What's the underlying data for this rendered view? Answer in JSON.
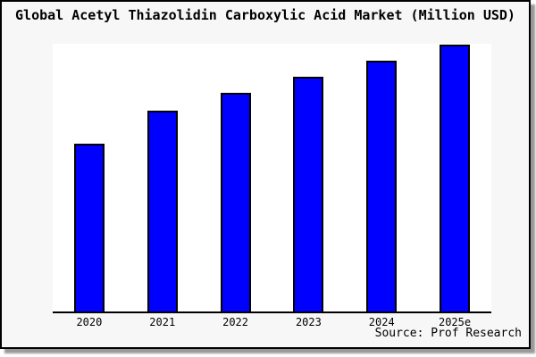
{
  "title": "Global Acetyl Thiazolidin Carboxylic Acid Market (Million USD)",
  "source_note": "Source: Prof Research",
  "chart_data": {
    "type": "bar",
    "title": "Global Acetyl Thiazolidin Carboxylic Acid Market (Million USD)",
    "categories": [
      "2020",
      "2021",
      "2022",
      "2023",
      "2024",
      "2025e"
    ],
    "values": [
      62.9,
      75.4,
      81.9,
      87.9,
      94.0,
      100.0
    ],
    "value_scale": "relative percent of tallest bar (2025e = 100); y-axis has no tick labels",
    "xlabel": "",
    "ylabel": "",
    "grid": false,
    "legend": "none",
    "annotations": [
      "Source: Prof Research"
    ],
    "bar_fill": "#0000ff",
    "bar_border": "#000000"
  },
  "colors": {
    "figure_bg": "#f7f7f7",
    "plot_bg": "#ffffff",
    "frame_border": "#000000",
    "shadow": "#999999",
    "bar_fill": "#0000ff",
    "bar_border": "#000000",
    "text": "#000000"
  }
}
